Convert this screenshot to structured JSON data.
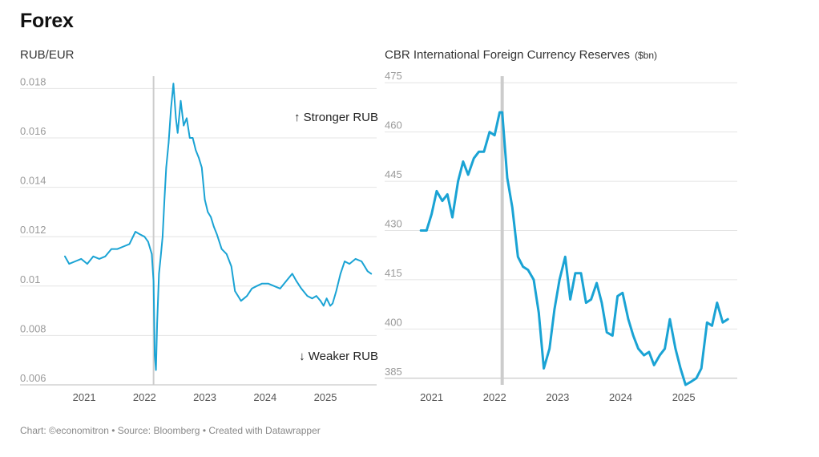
{
  "header": {
    "title": "Forex",
    "left_subtitle": "RUB/EUR",
    "right_subtitle": "CBR International Foreign Currency Reserves",
    "right_unit": "($bn)"
  },
  "footer": {
    "text": "Chart: ©economitron • Source: Bloomberg • Created with Datawrapper"
  },
  "colors": {
    "line": "#1aa3d4",
    "grid": "#e4e4e4",
    "marker": "#cccccc"
  },
  "chart_data": [
    {
      "type": "line",
      "title": "RUB/EUR",
      "xlim": [
        2020.6,
        2025.85
      ],
      "ylim": [
        0.006,
        0.0185
      ],
      "y_ticks": [
        "0.018",
        "0.016",
        "0.014",
        "0.012",
        "0.01",
        "0.008",
        "0.006"
      ],
      "y_tick_values": [
        0.018,
        0.016,
        0.014,
        0.012,
        0.01,
        0.008,
        0.006
      ],
      "x_ticks": [
        "2021",
        "2022",
        "2023",
        "2024",
        "2025"
      ],
      "x_tick_values": [
        2021.0,
        2022.0,
        2023.0,
        2024.0,
        2025.0
      ],
      "vertical_marker": 2022.15,
      "annotations": [
        "↑ Stronger RUB",
        "↓ Weaker RUB"
      ],
      "x": [
        2020.68,
        2020.75,
        2020.85,
        2020.95,
        2021.05,
        2021.15,
        2021.25,
        2021.35,
        2021.45,
        2021.55,
        2021.65,
        2021.75,
        2021.85,
        2021.92,
        2022.0,
        2022.06,
        2022.12,
        2022.15,
        2022.17,
        2022.19,
        2022.21,
        2022.24,
        2022.27,
        2022.3,
        2022.33,
        2022.36,
        2022.4,
        2022.44,
        2022.48,
        2022.52,
        2022.55,
        2022.6,
        2022.65,
        2022.7,
        2022.75,
        2022.8,
        2022.85,
        2022.9,
        2022.95,
        2023.0,
        2023.05,
        2023.1,
        2023.15,
        2023.2,
        2023.28,
        2023.36,
        2023.44,
        2023.5,
        2023.55,
        2023.6,
        2023.65,
        2023.7,
        2023.78,
        2023.86,
        2023.95,
        2024.05,
        2024.15,
        2024.25,
        2024.35,
        2024.45,
        2024.52,
        2024.6,
        2024.7,
        2024.78,
        2024.85,
        2024.92,
        2024.97,
        2025.02,
        2025.08,
        2025.12,
        2025.18,
        2025.25,
        2025.32,
        2025.4,
        2025.5,
        2025.6,
        2025.65,
        2025.7,
        2025.76
      ],
      "y": [
        0.0112,
        0.0109,
        0.011,
        0.0111,
        0.0109,
        0.0112,
        0.0111,
        0.0112,
        0.0115,
        0.0115,
        0.0116,
        0.0117,
        0.0122,
        0.0121,
        0.012,
        0.0118,
        0.0113,
        0.0102,
        0.0072,
        0.0066,
        0.0085,
        0.0105,
        0.0112,
        0.012,
        0.0135,
        0.0148,
        0.0158,
        0.0172,
        0.0182,
        0.0168,
        0.0162,
        0.0175,
        0.0165,
        0.0168,
        0.016,
        0.016,
        0.0155,
        0.0152,
        0.0148,
        0.0135,
        0.013,
        0.0128,
        0.0124,
        0.0121,
        0.0115,
        0.0113,
        0.0108,
        0.0098,
        0.0096,
        0.0094,
        0.0095,
        0.0096,
        0.0099,
        0.01,
        0.0101,
        0.0101,
        0.01,
        0.0099,
        0.0102,
        0.0105,
        0.0102,
        0.0099,
        0.0096,
        0.0095,
        0.0096,
        0.0094,
        0.0092,
        0.0095,
        0.0092,
        0.0093,
        0.0098,
        0.0105,
        0.011,
        0.0109,
        0.0111,
        0.011,
        0.0108,
        0.0106,
        0.0105
      ]
    },
    {
      "type": "line",
      "title": "CBR International Foreign Currency Reserves ($bn)",
      "xlim": [
        2020.7,
        2025.85
      ],
      "ylim": [
        383,
        477
      ],
      "y_ticks": [
        "475",
        "460",
        "445",
        "430",
        "415",
        "400",
        "385"
      ],
      "y_tick_values": [
        475,
        460,
        445,
        430,
        415,
        400,
        385
      ],
      "x_ticks": [
        "2021",
        "2022",
        "2023",
        "2024",
        "2025"
      ],
      "x_tick_values": [
        2021.0,
        2022.0,
        2023.0,
        2024.0,
        2025.0
      ],
      "vertical_marker": 2022.12,
      "x": [
        2020.83,
        2020.92,
        2021.0,
        2021.08,
        2021.17,
        2021.25,
        2021.33,
        2021.42,
        2021.5,
        2021.58,
        2021.67,
        2021.75,
        2021.83,
        2021.92,
        2022.0,
        2022.08,
        2022.12,
        2022.2,
        2022.28,
        2022.37,
        2022.45,
        2022.53,
        2022.62,
        2022.7,
        2022.78,
        2022.87,
        2022.95,
        2023.03,
        2023.12,
        2023.2,
        2023.28,
        2023.37,
        2023.45,
        2023.53,
        2023.62,
        2023.7,
        2023.78,
        2023.87,
        2023.95,
        2024.03,
        2024.12,
        2024.2,
        2024.28,
        2024.37,
        2024.45,
        2024.53,
        2024.62,
        2024.7,
        2024.78,
        2024.87,
        2024.95,
        2025.03,
        2025.12,
        2025.2,
        2025.28,
        2025.37,
        2025.45,
        2025.53,
        2025.62,
        2025.7
      ],
      "y": [
        430,
        430,
        435,
        442,
        439,
        441,
        434,
        445,
        451,
        447,
        452,
        454,
        454,
        460,
        459,
        466,
        466,
        446,
        437,
        422,
        419,
        418,
        415,
        405,
        388,
        394,
        406,
        415,
        422,
        409,
        417,
        417,
        408,
        409,
        414,
        408,
        399,
        398,
        410,
        411,
        403,
        398,
        394,
        392,
        393,
        389,
        392,
        394,
        403,
        394,
        388,
        383,
        384,
        385,
        388,
        402,
        401,
        408,
        402,
        403
      ]
    }
  ]
}
